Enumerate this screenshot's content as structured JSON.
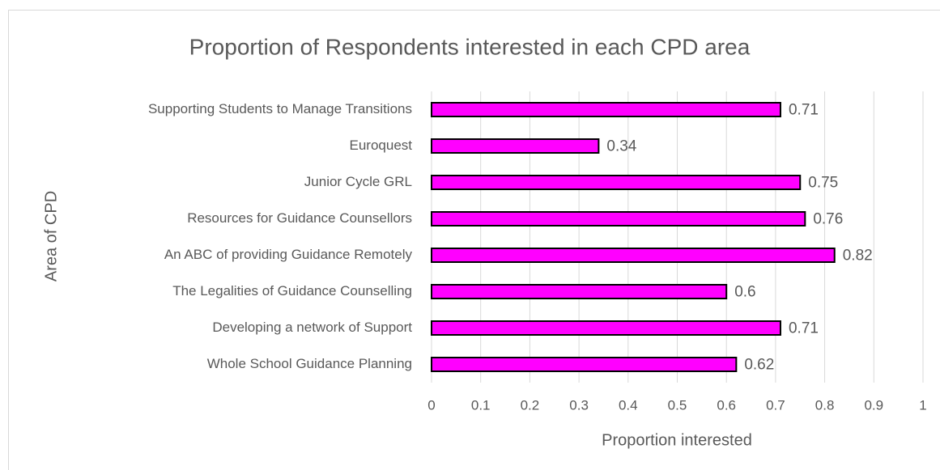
{
  "chart_data": {
    "type": "bar",
    "orientation": "horizontal",
    "title": "Proportion of Respondents interested in each CPD area",
    "xlabel": "Proportion interested",
    "ylabel": "Area of CPD",
    "categories": [
      "Supporting Students to Manage Transitions",
      "Euroquest",
      "Junior Cycle GRL",
      "Resources for Guidance Counsellors",
      "An ABC of providing Guidance Remotely",
      "The Legalities of Guidance Counselling",
      "Developing a network of Support",
      "Whole School Guidance Planning"
    ],
    "values": [
      0.71,
      0.34,
      0.75,
      0.76,
      0.82,
      0.6,
      0.71,
      0.62
    ],
    "color": "#ff00ff",
    "xlim": [
      0,
      1
    ],
    "xticks": [
      0,
      0.1,
      0.2,
      0.3,
      0.4,
      0.5,
      0.6,
      0.7,
      0.8,
      0.9,
      1
    ],
    "grid": true
  }
}
